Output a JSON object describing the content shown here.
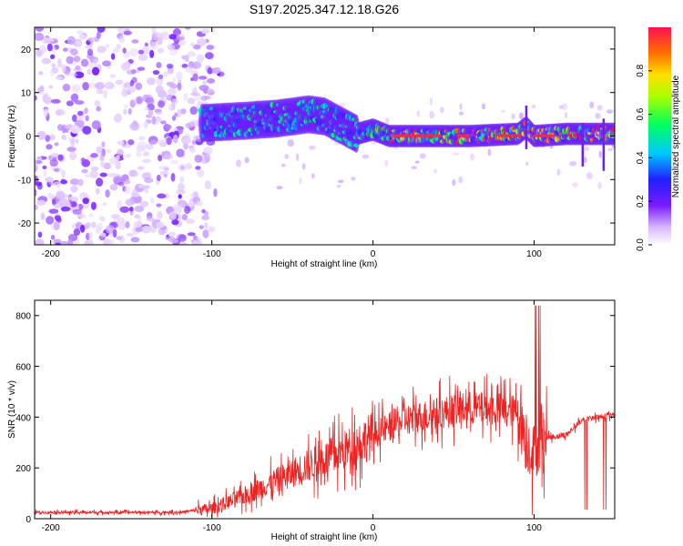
{
  "title": "S197.2025.347.12.18.G26",
  "chart_data": [
    {
      "type": "heatmap",
      "xlabel": "Height of straight line (km)",
      "ylabel": "Frequency (Hz)",
      "xlim": [
        -210,
        150
      ],
      "ylim": [
        -25,
        25
      ],
      "xticks": [
        -200,
        -100,
        0,
        100
      ],
      "yticks": [
        -20,
        -10,
        0,
        10,
        20
      ],
      "colorbar": {
        "label": "Normalized spectral amplitude",
        "range": [
          0,
          1
        ],
        "ticks": [
          "0.0",
          "0.2",
          "0.4",
          "0.6",
          "0.8"
        ]
      },
      "ridge": {
        "description": "dominant frequency track",
        "x": [
          -105,
          -80,
          -60,
          -40,
          -30,
          -20,
          -10,
          0,
          10,
          30,
          60,
          90,
          95,
          100,
          120,
          150
        ],
        "y": [
          3,
          3.5,
          4,
          5,
          4.5,
          2.5,
          0.5,
          1.5,
          0,
          0,
          0,
          0.5,
          2,
          0,
          0.5,
          0.5
        ]
      }
    },
    {
      "type": "line",
      "xlabel": "Height of straight line (km)",
      "ylabel": "SNR (10 * v/v)",
      "xlim": [
        -210,
        150
      ],
      "ylim": [
        0,
        860
      ],
      "xticks": [
        -200,
        -100,
        0,
        100
      ],
      "yticks": [
        0,
        200,
        400,
        600,
        800
      ],
      "color": "#ee2222",
      "trend": {
        "x": [
          -210,
          -120,
          -100,
          -80,
          -60,
          -40,
          -20,
          0,
          20,
          40,
          60,
          80,
          90,
          95,
          100,
          105,
          110,
          120,
          130,
          150
        ],
        "y": [
          25,
          25,
          40,
          90,
          150,
          210,
          260,
          330,
          390,
          415,
          435,
          430,
          420,
          300,
          260,
          330,
          320,
          330,
          390,
          410
        ]
      }
    }
  ],
  "colors": {
    "series": "#ee2222",
    "heat_low": "#b58ef5",
    "heat_mid": "#00d0ff",
    "heat_high": "#ff1744"
  }
}
